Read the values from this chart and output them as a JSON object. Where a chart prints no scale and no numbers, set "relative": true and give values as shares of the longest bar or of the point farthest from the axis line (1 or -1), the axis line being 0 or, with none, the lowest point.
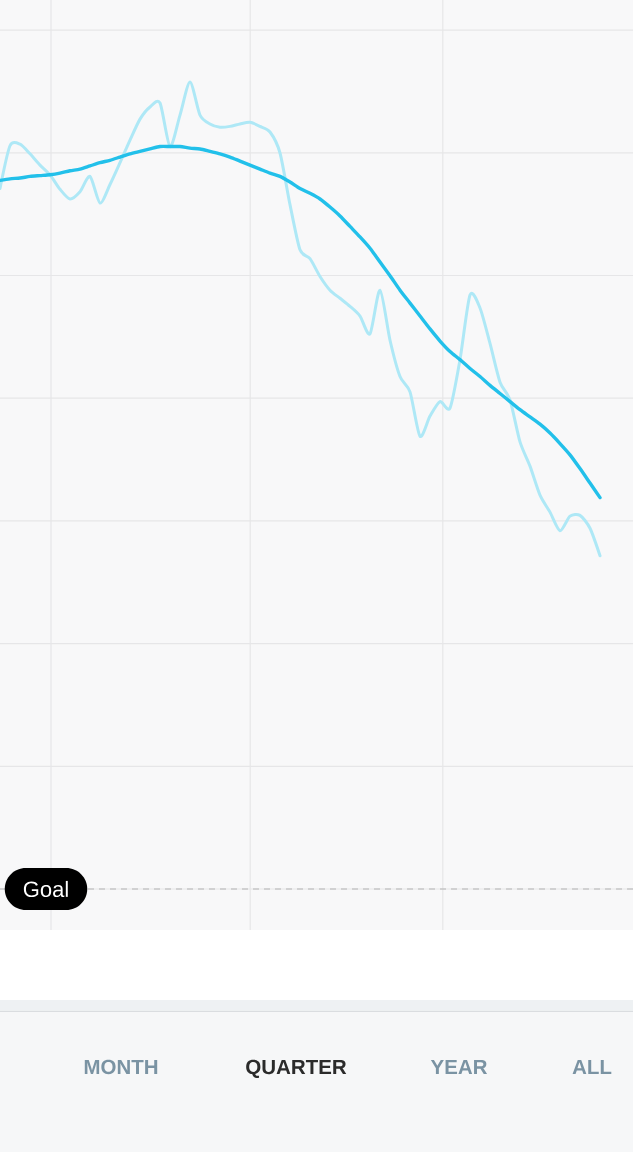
{
  "chart_data": {
    "type": "line",
    "relative": true,
    "grid": true,
    "categories": [
      null,
      null,
      null,
      null,
      null,
      null,
      null,
      null,
      null,
      null,
      null,
      null,
      null,
      null,
      null,
      null,
      null,
      null,
      null,
      null,
      null,
      null,
      null,
      null,
      null,
      null,
      null,
      null,
      null,
      null,
      null,
      null,
      null,
      null,
      null,
      null,
      null,
      null,
      null,
      null,
      null,
      null,
      null,
      null,
      null,
      null,
      null,
      null,
      null,
      null,
      null,
      null,
      null,
      null,
      null,
      null,
      null,
      null,
      null,
      null,
      null
    ],
    "series": [
      {
        "color": "#aee8f6",
        "values": [
          0.868,
          0.921,
          0.923,
          0.911,
          0.897,
          0.885,
          0.867,
          0.855,
          0.864,
          0.883,
          0.85,
          0.873,
          0.9,
          0.928,
          0.954,
          0.969,
          0.974,
          0.92,
          0.959,
          1.0,
          0.959,
          0.948,
          0.944,
          0.945,
          0.948,
          0.95,
          0.945,
          0.938,
          0.912,
          0.848,
          0.792,
          0.781,
          0.759,
          0.742,
          0.732,
          0.722,
          0.71,
          0.688,
          0.742,
          0.68,
          0.635,
          0.616,
          0.561,
          0.586,
          0.604,
          0.596,
          0.656,
          0.736,
          0.72,
          0.676,
          0.628,
          0.606,
          0.554,
          0.524,
          0.488,
          0.467,
          0.444,
          0.462,
          0.463,
          0.447,
          0.413
        ]
      },
      {
        "color": "#22c0ea",
        "values": [
          0.878,
          0.88,
          0.881,
          0.883,
          0.884,
          0.885,
          0.887,
          0.89,
          0.892,
          0.896,
          0.9,
          0.903,
          0.907,
          0.911,
          0.914,
          0.917,
          0.92,
          0.92,
          0.92,
          0.918,
          0.917,
          0.914,
          0.911,
          0.907,
          0.902,
          0.897,
          0.892,
          0.887,
          0.883,
          0.876,
          0.868,
          0.862,
          0.855,
          0.845,
          0.834,
          0.821,
          0.808,
          0.794,
          0.777,
          0.76,
          0.742,
          0.726,
          0.71,
          0.694,
          0.679,
          0.666,
          0.656,
          0.645,
          0.635,
          0.624,
          0.614,
          0.604,
          0.594,
          0.585,
          0.576,
          0.565,
          0.552,
          0.538,
          0.521,
          0.503,
          0.485
        ]
      }
    ],
    "ref_lines": [
      {
        "axis": "y",
        "value": 0,
        "label": "Goal",
        "color": "#b4b4b4",
        "line_style": "dashed"
      }
    ],
    "annotations": [
      "MONTH",
      "QUARTER",
      "YEAR",
      "ALL"
    ]
  }
}
